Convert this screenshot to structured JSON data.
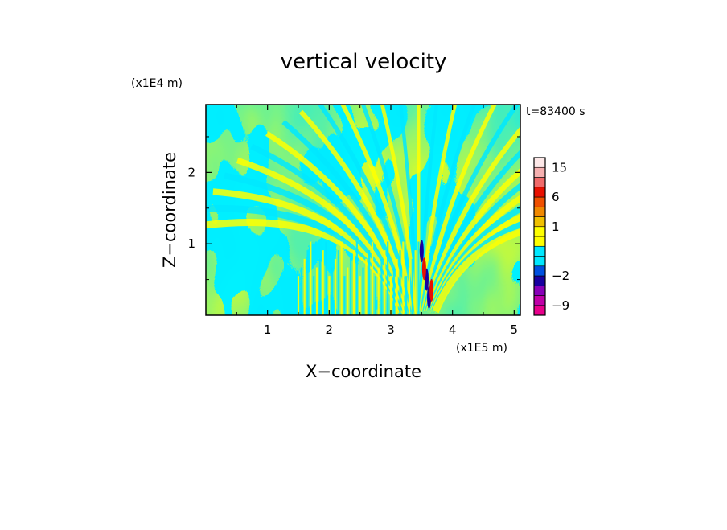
{
  "chart_data": {
    "type": "heatmap",
    "title": "vertical velocity",
    "xlabel": "X−coordinate",
    "ylabel": "Z−coordinate",
    "x_scale_label": "(x1E5 m)",
    "y_scale_label": "(x1E4 m)",
    "time_label": "t=83400 s",
    "x_ticks": [
      "1",
      "2",
      "3",
      "4",
      "5"
    ],
    "x_tick_values": [
      1,
      2,
      3,
      4,
      5
    ],
    "y_ticks": [
      "1",
      "2"
    ],
    "y_tick_values": [
      1,
      2
    ],
    "xlim": [
      0,
      5.1
    ],
    "ylim": [
      0,
      2.95
    ],
    "colorbar": {
      "labels": [
        "15",
        "6",
        "1",
        "−2",
        "−9"
      ],
      "label_values": [
        15,
        6,
        1,
        -2,
        -9
      ],
      "levels": [
        -12,
        -9,
        -6,
        -4,
        -2,
        -1,
        -0.5,
        0,
        0.5,
        1,
        2,
        4,
        6,
        9,
        12,
        15,
        18
      ],
      "colors": [
        "#e8008c",
        "#c000a8",
        "#8800b8",
        "#1800a0",
        "#0050e0",
        "#00e8ff",
        "#00e8ff",
        "#ffff00",
        "#ffff00",
        "#f0c000",
        "#f08800",
        "#f05000",
        "#e81000",
        "#f06a6a",
        "#f5b0b0",
        "#fde8e8"
      ]
    },
    "field_colors": {
      "positive": "#ffff00",
      "negative": "#00e8ff",
      "strong_negative": "#1800a0",
      "strong_positive": "#e81000"
    }
  }
}
